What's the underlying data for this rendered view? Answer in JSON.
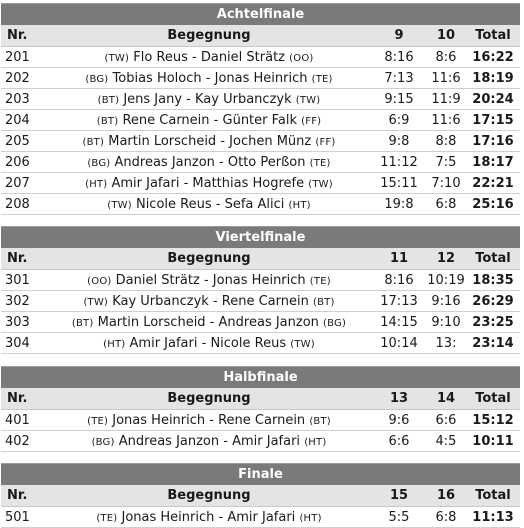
{
  "sections": [
    {
      "title": "Achtelfinale",
      "headers": {
        "nr": "Nr.",
        "match": "Begegnung",
        "s1": "9",
        "s2": "10",
        "total": "Total"
      },
      "rows": [
        {
          "nr": "201",
          "c1": "(TW)",
          "p1": "Flo Reus",
          "sep": " - ",
          "p2": "Daniel Strätz",
          "c2": "(OO)",
          "s1": "8:16",
          "s2": "8:6",
          "total": "16:22"
        },
        {
          "nr": "202",
          "c1": "(BG)",
          "p1": "Tobias Holoch",
          "sep": " - ",
          "p2": "Jonas Heinrich",
          "c2": "(TE)",
          "s1": "7:13",
          "s2": "11:6",
          "total": "18:19"
        },
        {
          "nr": "203",
          "c1": "(BT)",
          "p1": "Jens Jany",
          "sep": " - ",
          "p2": "Kay Urbanczyk",
          "c2": "(TW)",
          "s1": "9:15",
          "s2": "11:9",
          "total": "20:24"
        },
        {
          "nr": "204",
          "c1": "(BT)",
          "p1": "Rene Carnein",
          "sep": " - ",
          "p2": "Günter Falk",
          "c2": "(FF)",
          "s1": "6:9",
          "s2": "11:6",
          "total": "17:15"
        },
        {
          "nr": "205",
          "c1": "(BT)",
          "p1": "Martin Lorscheid",
          "sep": " - ",
          "p2": "Jochen Münz",
          "c2": "(FF)",
          "s1": "9:8",
          "s2": "8:8",
          "total": "17:16"
        },
        {
          "nr": "206",
          "c1": "(BG)",
          "p1": "Andreas Janzon",
          "sep": " - ",
          "p2": "Otto Perßon",
          "c2": "(TE)",
          "s1": "11:12",
          "s2": "7:5",
          "total": "18:17"
        },
        {
          "nr": "207",
          "c1": "(HT)",
          "p1": "Amir Jafari",
          "sep": " - ",
          "p2": "Matthias Hogrefe",
          "c2": "(TW)",
          "s1": "15:11",
          "s2": "7:10",
          "total": "22:21"
        },
        {
          "nr": "208",
          "c1": "(TW)",
          "p1": "Nicole Reus",
          "sep": " - ",
          "p2": "Sefa Alici",
          "c2": "(HT)",
          "s1": "19:8",
          "s2": "6:8",
          "total": "25:16"
        }
      ]
    },
    {
      "title": "Viertelfinale",
      "headers": {
        "nr": "Nr.",
        "match": "Begegnung",
        "s1": "11",
        "s2": "12",
        "total": "Total"
      },
      "rows": [
        {
          "nr": "301",
          "c1": "(OO)",
          "p1": "Daniel Strätz",
          "sep": " - ",
          "p2": "Jonas Heinrich",
          "c2": "(TE)",
          "s1": "8:16",
          "s2": "10:19",
          "total": "18:35"
        },
        {
          "nr": "302",
          "c1": "(TW)",
          "p1": "Kay Urbanczyk",
          "sep": " - ",
          "p2": "Rene Carnein",
          "c2": "(BT)",
          "s1": "17:13",
          "s2": "9:16",
          "total": "26:29"
        },
        {
          "nr": "303",
          "c1": "(BT)",
          "p1": "Martin Lorscheid",
          "sep": " - ",
          "p2": "Andreas Janzon",
          "c2": "(BG)",
          "s1": "14:15",
          "s2": "9:10",
          "total": "23:25"
        },
        {
          "nr": "304",
          "c1": "(HT)",
          "p1": "Amir Jafari",
          "sep": " - ",
          "p2": "Nicole Reus",
          "c2": "(TW)",
          "s1": "10:14",
          "s2": "13:",
          "total": "23:14"
        }
      ]
    },
    {
      "title": "Halbfinale",
      "headers": {
        "nr": "Nr.",
        "match": "Begegnung",
        "s1": "13",
        "s2": "14",
        "total": "Total"
      },
      "rows": [
        {
          "nr": "401",
          "c1": "(TE)",
          "p1": "Jonas Heinrich",
          "sep": " - ",
          "p2": "Rene Carnein",
          "c2": "(BT)",
          "s1": "9:6",
          "s2": "6:6",
          "total": "15:12"
        },
        {
          "nr": "402",
          "c1": "(BG)",
          "p1": "Andreas Janzon",
          "sep": " - ",
          "p2": "Amir Jafari",
          "c2": "(HT)",
          "s1": "6:6",
          "s2": "4:5",
          "total": "10:11"
        }
      ]
    },
    {
      "title": "Finale",
      "headers": {
        "nr": "Nr.",
        "match": "Begegnung",
        "s1": "15",
        "s2": "16",
        "total": "Total"
      },
      "rows": [
        {
          "nr": "501",
          "c1": "(TE)",
          "p1": "Jonas Heinrich",
          "sep": " - ",
          "p2": "Amir Jafari",
          "c2": "(HT)",
          "s1": "5:5",
          "s2": "6:8",
          "total": "11:13"
        }
      ]
    }
  ],
  "colors": {
    "header_bg": "#7a7a7a",
    "colhead_bg": "#e4e4e4",
    "text": "#1a1a1a"
  }
}
